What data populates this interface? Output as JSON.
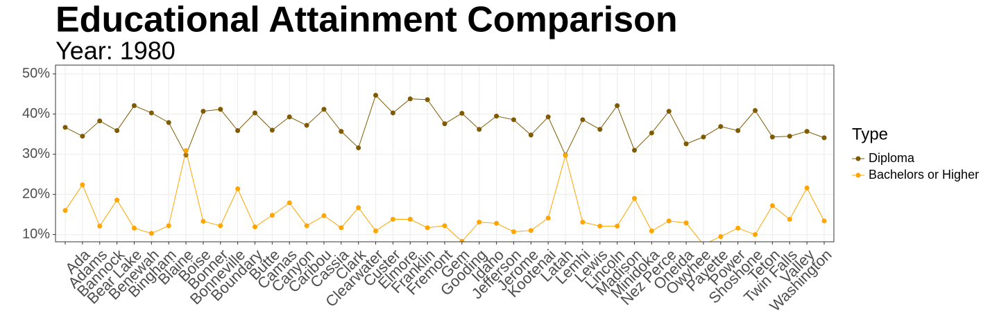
{
  "chart_data": {
    "type": "line",
    "title": "Educational Attainment Comparison",
    "subtitle": "Year: 1980",
    "legend_title": "Type",
    "legend_position": "right",
    "grid": true,
    "categories": [
      null,
      "Ada",
      "Adams",
      "Bannock",
      "Bear Lake",
      "Benewah",
      "Bingham",
      "Blaine",
      "Boise",
      "Bonner",
      "Bonneville",
      "Boundary",
      "Butte",
      "Camas",
      "Canyon",
      "Caribou",
      "Cassia",
      "Clark",
      "Clearwater",
      "Custer",
      "Elmore",
      "Franklin",
      "Fremont",
      "Gem",
      "Gooding",
      "Idaho",
      "Jefferson",
      "Jerome",
      "Kootenai",
      "Latah",
      "Lemhi",
      "Lewis",
      "Lincoln",
      "Madison",
      "Minidoka",
      "Nez Perce",
      "Oneida",
      "Owyhee",
      "Payette",
      "Power",
      "Shoshone",
      "Teton",
      "Twin Falls",
      "Valley",
      "Washington"
    ],
    "series": [
      {
        "name": "Diploma",
        "color": "#7f5a00",
        "values": [
          36.7,
          34.5,
          38.3,
          35.9,
          42.1,
          40.3,
          37.9,
          29.8,
          40.7,
          41.2,
          35.9,
          40.3,
          36.0,
          39.3,
          37.2,
          41.2,
          35.7,
          31.6,
          44.7,
          40.3,
          43.8,
          43.6,
          37.6,
          40.2,
          36.2,
          39.5,
          38.6,
          34.8,
          39.3,
          29.8,
          38.6,
          36.2,
          42.1,
          31.0,
          35.3,
          40.7,
          32.6,
          34.3,
          36.9,
          35.9,
          40.9,
          34.3,
          34.5,
          35.7,
          34.1
        ]
      },
      {
        "name": "Bachelors or Higher",
        "color": "#ffa500",
        "values": [
          16.0,
          22.4,
          12.1,
          18.6,
          11.6,
          10.3,
          12.2,
          30.9,
          13.3,
          12.2,
          21.4,
          11.9,
          14.8,
          17.9,
          12.2,
          14.7,
          11.7,
          16.7,
          10.9,
          13.8,
          13.8,
          11.7,
          12.2,
          8.3,
          13.1,
          12.8,
          10.7,
          11.0,
          14.1,
          29.7,
          13.1,
          12.1,
          12.1,
          19.0,
          10.9,
          13.4,
          12.9,
          7.5,
          9.5,
          11.6,
          10.0,
          17.2,
          13.8,
          21.6,
          13.4
        ]
      }
    ],
    "ylim": [
      8.2,
      52.2
    ],
    "yticks": [
      {
        "value": 10,
        "label": "10%"
      },
      {
        "value": 20,
        "label": "20%"
      },
      {
        "value": 30,
        "label": "30%"
      },
      {
        "value": 40,
        "label": "40%"
      },
      {
        "value": 50,
        "label": "50%"
      }
    ]
  }
}
